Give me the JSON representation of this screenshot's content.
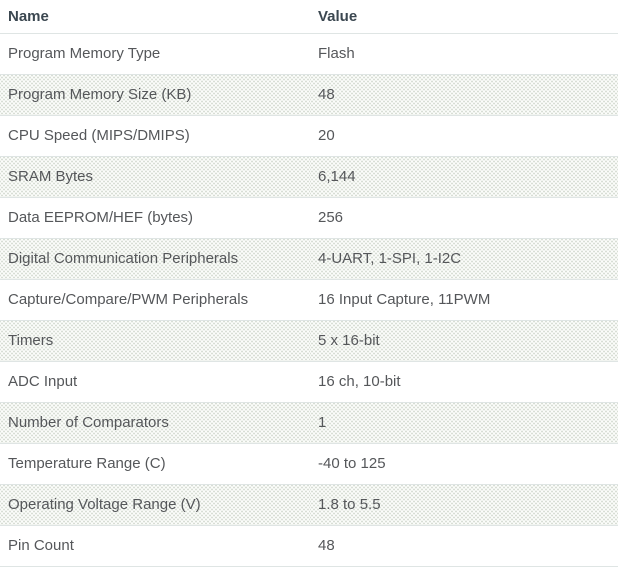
{
  "table": {
    "columns": [
      "Name",
      "Value"
    ],
    "rows": [
      {
        "name": "Program Memory Type",
        "value": "Flash"
      },
      {
        "name": "Program Memory Size (KB)",
        "value": "48"
      },
      {
        "name": "CPU Speed (MIPS/DMIPS)",
        "value": "20"
      },
      {
        "name": "SRAM Bytes",
        "value": "6,144"
      },
      {
        "name": "Data EEPROM/HEF (bytes)",
        "value": "256"
      },
      {
        "name": "Digital Communication Peripherals",
        "value": "4-UART, 1-SPI, 1-I2C"
      },
      {
        "name": "Capture/Compare/PWM Peripherals",
        "value": "16 Input Capture, 11PWM"
      },
      {
        "name": "Timers",
        "value": "5 x 16-bit"
      },
      {
        "name": "ADC Input",
        "value": "16 ch, 10-bit"
      },
      {
        "name": "Number of Comparators",
        "value": "1"
      },
      {
        "name": "Temperature Range (C)",
        "value": "-40 to 125"
      },
      {
        "name": "Operating Voltage Range (V)",
        "value": "1.8 to 5.5"
      },
      {
        "name": "Pin Count",
        "value": "48"
      }
    ]
  },
  "colors": {
    "header_text": "#3b4750",
    "body_text": "#55575a",
    "row_border": "#dfe5e4",
    "stripe_dot": "#d8ded5"
  }
}
